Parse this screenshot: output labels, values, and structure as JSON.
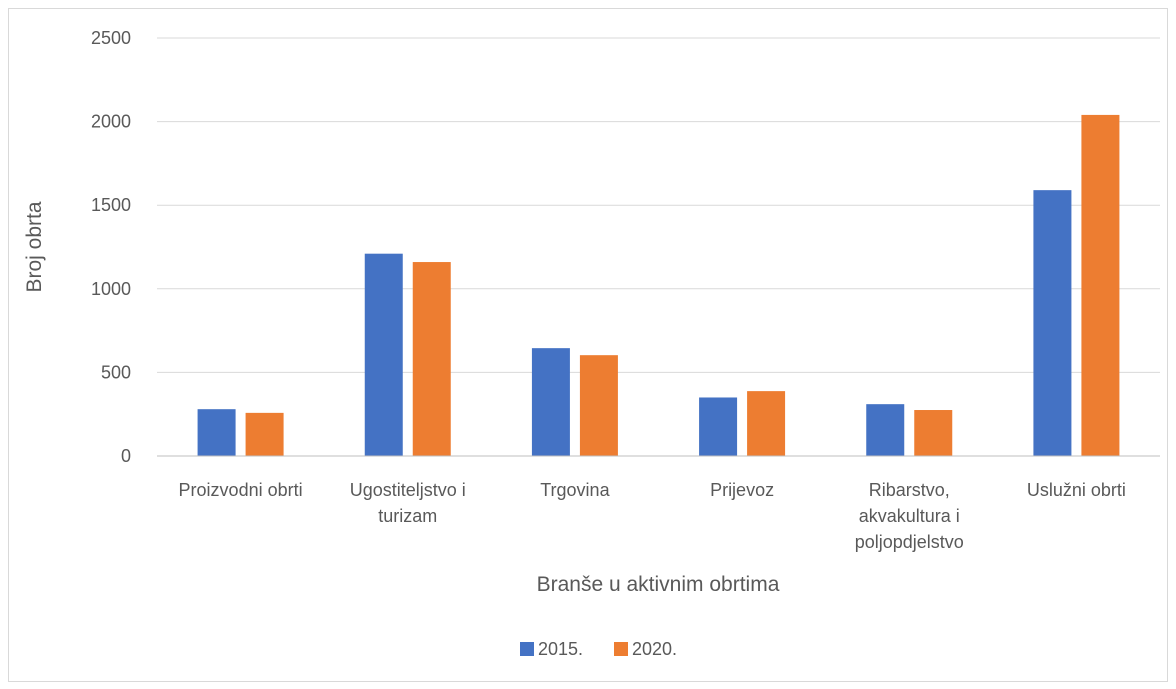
{
  "chart_data": {
    "type": "bar",
    "title": "",
    "xlabel": "Branše u aktivnim obrtima",
    "ylabel": "Broj obrta",
    "ylim": [
      0,
      2500
    ],
    "yticks": [
      "0",
      "500",
      "1000",
      "1500",
      "2000",
      "2500"
    ],
    "grid": true,
    "legend_position": "bottom",
    "categories": [
      "Proizvodni obrti",
      "Ugostiteljstvo i turizam",
      "Trgovina",
      "Prijevoz",
      "Ribarstvo, akvakultura i poljopdjelstvo",
      "Uslužni obrti"
    ],
    "category_lines": [
      [
        "Proizvodni obrti"
      ],
      [
        "Ugostiteljstvo i",
        "turizam"
      ],
      [
        "Trgovina"
      ],
      [
        "Prijevoz"
      ],
      [
        "Ribarstvo,",
        "akvakultura i",
        "poljopdjelstvo"
      ],
      [
        "Uslužni obrti"
      ]
    ],
    "series": [
      {
        "name": "2015.",
        "color": "#4472C4",
        "values": [
          280,
          1210,
          645,
          350,
          310,
          1590
        ]
      },
      {
        "name": "2020.",
        "color": "#ED7D31",
        "values": [
          258,
          1160,
          603,
          388,
          275,
          2040
        ]
      }
    ]
  }
}
